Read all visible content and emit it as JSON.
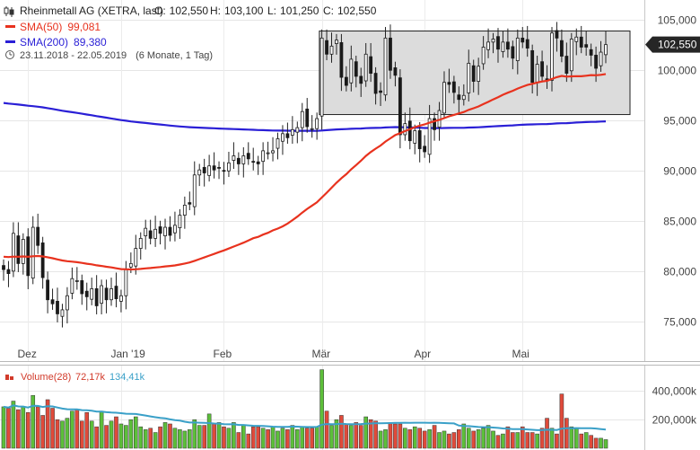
{
  "header": {
    "title": "Rheinmetall AG (XETRA, last)",
    "ohlc": [
      {
        "label": "O:",
        "value": "102,550"
      },
      {
        "label": "H:",
        "value": "103,100"
      },
      {
        "label": "L:",
        "value": "101,250"
      },
      {
        "label": "C:",
        "value": "102,550"
      }
    ],
    "range": "23.11.2018 - 22.05.2019",
    "range_detail": "(6 Monate, 1 Tag)"
  },
  "legend": [
    {
      "label": "SMA(50)",
      "value": "99,081",
      "color": "#e8321e"
    },
    {
      "label": "SMA(200)",
      "value": "89,380",
      "color": "#2a1fd6"
    }
  ],
  "last_price_label": "102,550",
  "volume_legend": {
    "label": "Volume(28)",
    "value1": "72,17k",
    "value2": "134,41k",
    "color1": "#d23a2a",
    "color2": "#3aa0c8"
  },
  "chart_data": {
    "type": "candlestick",
    "y_ticks": [
      "105,000",
      "100,000",
      "95,000",
      "90,000",
      "85,000",
      "80,000",
      "75,000"
    ],
    "y_tick_values": [
      105,
      100,
      95,
      90,
      85,
      80,
      75
    ],
    "ylim": [
      72,
      106
    ],
    "x_ticks": [
      {
        "label": "Dez",
        "index": 5
      },
      {
        "label": "Jan '19",
        "index": 24
      },
      {
        "label": "Feb",
        "index": 45
      },
      {
        "label": "Mär",
        "index": 65
      },
      {
        "label": "Apr",
        "index": 86
      },
      {
        "label": "Mai",
        "index": 106
      }
    ],
    "closes": [
      80.2,
      79.8,
      83.8,
      80.8,
      83.2,
      79.6,
      84.4,
      82.6,
      79.4,
      77.2,
      76.8,
      75.8,
      76.2,
      77.6,
      79.3,
      79.1,
      77.8,
      77.5,
      78.3,
      76.6,
      78.6,
      77.2,
      78.3,
      77.3,
      77.6,
      80.2,
      80.8,
      82.3,
      83.3,
      84.3,
      83.3,
      84.2,
      83.8,
      84.4,
      83.6,
      84.6,
      85.6,
      86.6,
      86.7,
      89.6,
      90.1,
      89.8,
      90.5,
      90.1,
      90.3,
      90.0,
      90.8,
      91.5,
      90.7,
      91.5,
      91.2,
      90.9,
      90.7,
      92.0,
      91.8,
      92.0,
      93.2,
      93.7,
      93.3,
      94.1,
      94.3,
      95.9,
      94.4,
      94.2,
      95.2,
      103.2,
      101.6,
      102.4,
      103.0,
      99.3,
      98.5,
      101.1,
      99.4,
      98.7,
      101.6,
      99.7,
      97.7,
      97.8,
      103.2,
      100.0,
      99.5,
      93.6,
      94.7,
      93.0,
      94.0,
      92.2,
      91.9,
      95.2,
      94.1,
      96.0,
      98.8,
      98.6,
      97.8,
      97.1,
      97.5,
      100.7,
      98.9,
      100.4,
      102.3,
      102.8,
      103.1,
      102.1,
      102.8,
      102.1,
      101.2,
      103.2,
      102.8,
      102.2,
      98.8,
      100.6,
      99.4,
      99.0,
      103.7,
      103.2,
      101.4,
      99.7,
      103.1,
      103.3,
      102.3,
      102.3,
      101.5,
      100.2,
      101.8,
      102.55
    ],
    "volumes": [
      290,
      280,
      330,
      270,
      290,
      250,
      370,
      290,
      230,
      340,
      280,
      200,
      190,
      210,
      260,
      270,
      190,
      250,
      190,
      150,
      260,
      160,
      190,
      220,
      170,
      160,
      200,
      220,
      150,
      130,
      140,
      110,
      150,
      180,
      170,
      140,
      130,
      120,
      130,
      200,
      160,
      160,
      240,
      170,
      180,
      150,
      140,
      180,
      110,
      160,
      100,
      150,
      150,
      140,
      130,
      150,
      120,
      140,
      130,
      160,
      130,
      150,
      140,
      140,
      150,
      550,
      260,
      160,
      200,
      230,
      170,
      160,
      180,
      160,
      220,
      200,
      190,
      120,
      130,
      180,
      170,
      170,
      140,
      130,
      150,
      140,
      120,
      130,
      160,
      110,
      120,
      100,
      110,
      130,
      170,
      140,
      120,
      130,
      140,
      160,
      120,
      90,
      100,
      150,
      110,
      110,
      150,
      110,
      110,
      100,
      140,
      210,
      140,
      100,
      380,
      210,
      150,
      140,
      100,
      110,
      90,
      70,
      70,
      60
    ],
    "volume_ylim": [
      0,
      560
    ],
    "volume_ticks": [
      "400,000k",
      "200,000k"
    ],
    "volume_tick_values": [
      400,
      200
    ]
  }
}
